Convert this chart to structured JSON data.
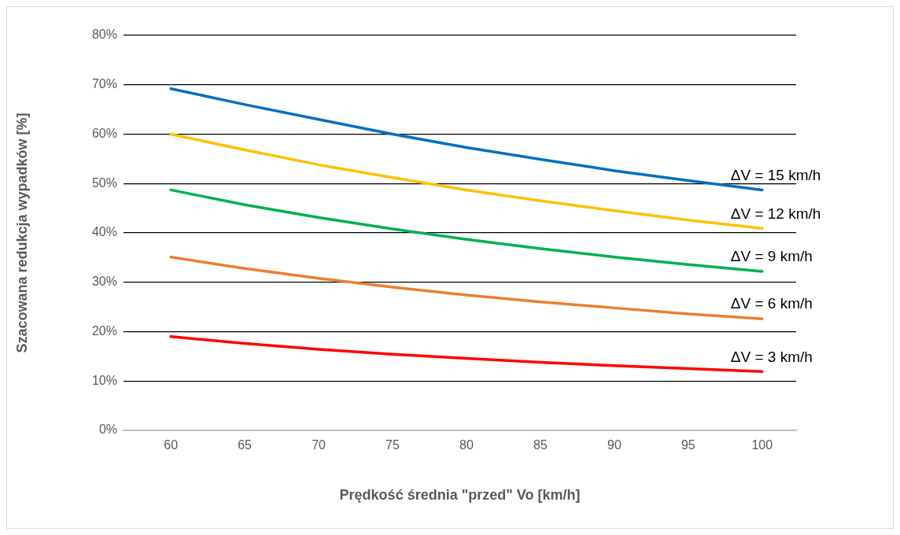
{
  "chart_data": {
    "type": "line",
    "xlabel": "Prędkość średnia \"przed\" Vo [km/h]",
    "ylabel": "Szacowana redukcja wypadków [%]",
    "x": [
      60,
      65,
      70,
      75,
      80,
      85,
      90,
      95,
      100
    ],
    "xlim": [
      56.8,
      102.3
    ],
    "xticks": [
      60,
      65,
      70,
      75,
      80,
      85,
      90,
      95,
      100
    ],
    "ylim": [
      0,
      80
    ],
    "yticks": [
      {
        "value": 0,
        "label": "0%"
      },
      {
        "value": 10,
        "label": "10%"
      },
      {
        "value": 20,
        "label": "20%"
      },
      {
        "value": 30,
        "label": "30%"
      },
      {
        "value": 40,
        "label": "40%"
      },
      {
        "value": 50,
        "label": "50%"
      },
      {
        "value": 60,
        "label": "60%"
      },
      {
        "value": 70,
        "label": "70%"
      },
      {
        "value": 80,
        "label": "80%"
      }
    ],
    "grid": "y",
    "legend": false,
    "marker": "none",
    "line_style": "solid",
    "series": [
      {
        "name": "ΔV = 15 km/h",
        "color": "#0070c0",
        "values": [
          69.2,
          66.0,
          63.0,
          60.0,
          57.3,
          54.9,
          52.6,
          50.6,
          48.7
        ]
      },
      {
        "name": "ΔV = 12 km/h",
        "color": "#ffc000",
        "values": [
          60.0,
          56.8,
          53.8,
          51.2,
          48.7,
          46.5,
          44.5,
          42.6,
          40.9
        ]
      },
      {
        "name": "ΔV = 9 km/h",
        "color": "#00b050",
        "values": [
          48.7,
          45.7,
          43.1,
          40.8,
          38.7,
          36.8,
          35.1,
          33.6,
          32.2
        ]
      },
      {
        "name": "ΔV = 6 km/h",
        "color": "#ed7d31",
        "values": [
          35.1,
          32.8,
          30.8,
          29.0,
          27.4,
          26.0,
          24.8,
          23.6,
          22.6
        ]
      },
      {
        "name": "ΔV = 3 km/h",
        "color": "#ff0000",
        "values": [
          19.0,
          17.6,
          16.4,
          15.4,
          14.6,
          13.8,
          13.1,
          12.5,
          11.9
        ]
      }
    ]
  }
}
